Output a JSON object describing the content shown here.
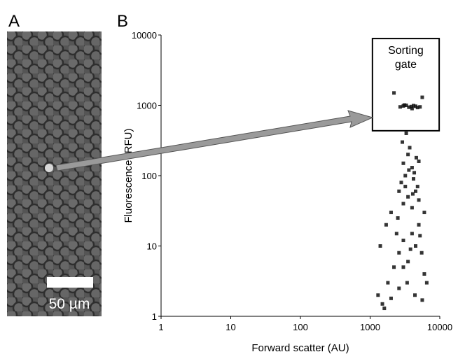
{
  "panel_a": {
    "label": "A",
    "scale_bar_label": "50 µm"
  },
  "chart_data": {
    "type": "scatter",
    "panel_label": "B",
    "xlabel": "Forward scatter (AU)",
    "ylabel": "Fluorescence (RFU)",
    "xscale": "log",
    "yscale": "log",
    "xlim": [
      1,
      10000
    ],
    "ylim": [
      1,
      10000
    ],
    "xticks": [
      1,
      10,
      100,
      1000,
      10000
    ],
    "yticks": [
      1,
      10,
      100,
      1000,
      10000
    ],
    "color": "#111111",
    "gate": {
      "xlim": [
        1080,
        9800
      ],
      "ylim": [
        435,
        8900
      ],
      "label_lines": [
        "Sorting",
        "gate"
      ]
    },
    "x": [
      1300,
      1500,
      1800,
      2200,
      2600,
      3000,
      3500,
      4000,
      4500,
      5000,
      5500,
      6000,
      6500,
      1400,
      1700,
      2000,
      2500,
      3000,
      3500,
      4000,
      4500,
      5000,
      6000,
      2800,
      3200,
      3600,
      4200,
      4800,
      2400,
      3000,
      3800,
      5200,
      1600,
      2000,
      2600,
      3400,
      4400,
      5600,
      3000,
      3500,
      4000,
      4300,
      5000,
      2600,
      3200,
      4100,
      2900,
      3700,
      4600,
      3300,
      2700,
      3000,
      3300,
      3600,
      3900,
      4200,
      4500,
      4800,
      5200,
      3100,
      4000,
      2200,
      5600
    ],
    "values": [
      2,
      1.5,
      3,
      5,
      8,
      12,
      6,
      15,
      10,
      20,
      8,
      4,
      3,
      10,
      20,
      30,
      25,
      40,
      50,
      35,
      60,
      45,
      30,
      80,
      100,
      120,
      90,
      70,
      15,
      5,
      9,
      14,
      1.3,
      1.8,
      2.5,
      3,
      2,
      1.7,
      150,
      200,
      130,
      110,
      160,
      60,
      70,
      55,
      300,
      250,
      180,
      400,
      950,
      980,
      1000,
      940,
      960,
      990,
      970,
      930,
      950,
      1010,
      900,
      1500,
      1300
    ]
  }
}
